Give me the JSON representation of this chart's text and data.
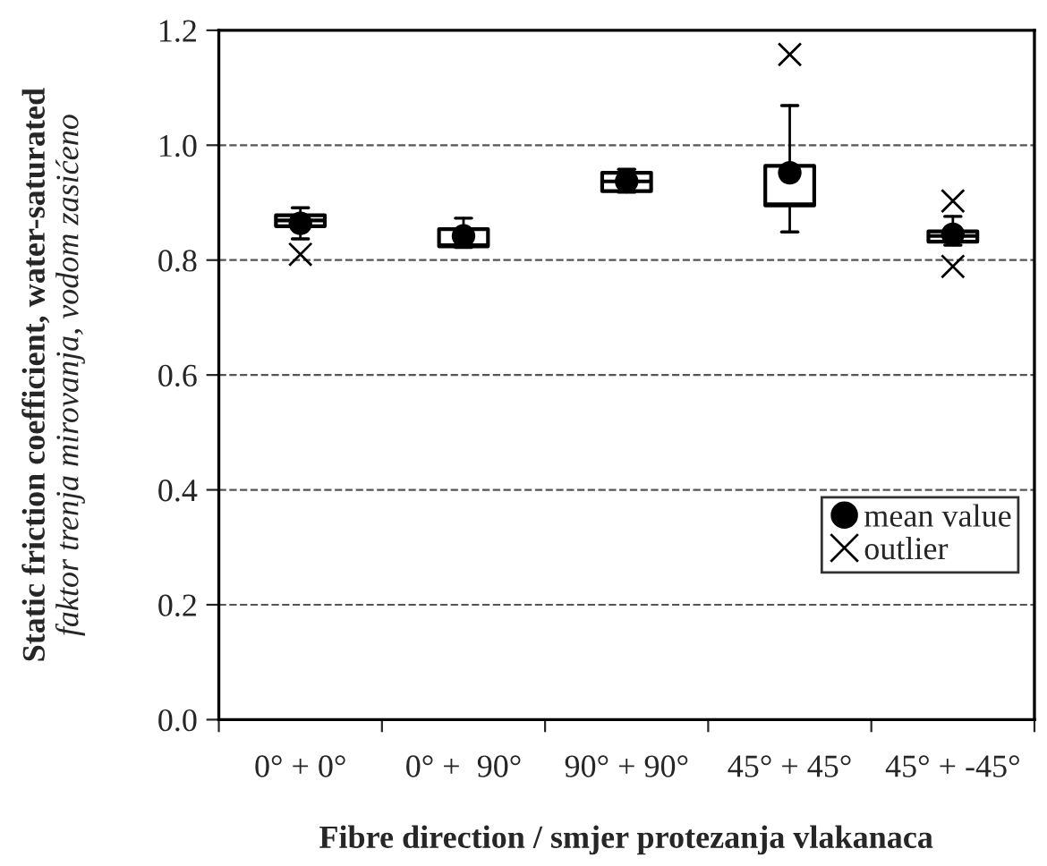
{
  "chart_data": {
    "type": "box",
    "ylabel": "Static friction coefficient, water-saturated\nfaktor trenja mirovanja, vodom zasićeno",
    "xlabel": "Fibre direction / smjer protezanja vlakanaca",
    "categories": [
      "0° + 0°",
      "0° +  90°",
      "90° + 90°",
      "45° + 45°",
      "45° + -45°"
    ],
    "boxes": [
      {
        "low": 0.837,
        "q1": 0.859,
        "median": 0.869,
        "q3": 0.878,
        "high": 0.891
      },
      {
        "low": 0.822,
        "q1": 0.824,
        "median": 0.826,
        "q3": 0.854,
        "high": 0.873
      },
      {
        "low": 0.918,
        "q1": 0.92,
        "median": 0.937,
        "q3": 0.952,
        "high": 0.958
      },
      {
        "low": 0.849,
        "q1": 0.895,
        "median": 0.897,
        "q3": 0.964,
        "high": 1.069
      },
      {
        "low": 0.826,
        "q1": 0.832,
        "median": 0.842,
        "q3": 0.85,
        "high": 0.876
      }
    ],
    "series": [
      {
        "name": "mean value",
        "type": "scatter",
        "marker": "circle",
        "color": "#000000",
        "x": [
          "0° + 0°",
          "0° +  90°",
          "90° + 90°",
          "45° + 45°",
          "45° + -45°"
        ],
        "values": [
          0.864,
          0.842,
          0.937,
          0.952,
          0.845
        ]
      },
      {
        "name": "outlier",
        "type": "scatter",
        "marker": "cross",
        "color": "#000000",
        "x": [
          "0° + 0°",
          "45° + 45°",
          "45° + -45°",
          "45° + -45°"
        ],
        "values": [
          0.81,
          1.158,
          0.903,
          0.789
        ]
      }
    ],
    "ylim": [
      0,
      1.2
    ],
    "yticks": [
      {
        "value": 0,
        "label": "0.0"
      },
      0.2,
      0.4,
      0.6,
      0.8,
      {
        "value": 1,
        "label": "1.0"
      },
      1.2
    ],
    "grid": "y",
    "legend": "bottom right"
  }
}
